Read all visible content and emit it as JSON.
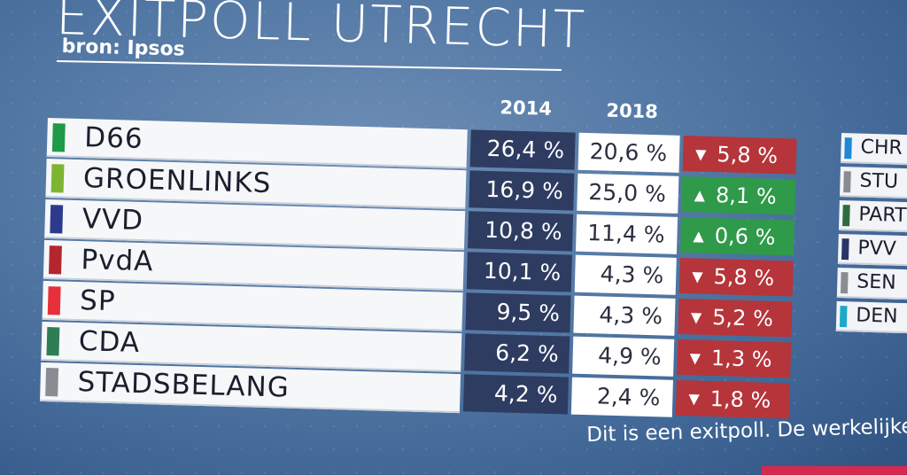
{
  "title": "EXITPOLL UTRECHT",
  "source": "bron: Ipsos",
  "disclaimer": "Dit is een exitpoll. De werkelijke ui",
  "colors": {
    "increase": "#2f9a4a",
    "decrease": "#b5353b",
    "col2014": "#2e3c62"
  },
  "chart_data": {
    "type": "table",
    "columns": [
      "2014",
      "2018"
    ],
    "rows": [
      {
        "party": "D66",
        "color": "#1f9a46",
        "v2014": "26,4 %",
        "v2018": "20,6 %",
        "direction": "down",
        "change": "5,8 %"
      },
      {
        "party": "GROENLINKS",
        "color": "#7db532",
        "v2014": "16,9 %",
        "v2018": "25,0 %",
        "direction": "up",
        "change": "8,1 %"
      },
      {
        "party": "VVD",
        "color": "#2d3a8c",
        "v2014": "10,8 %",
        "v2018": "11,4 %",
        "direction": "up",
        "change": "0,6 %"
      },
      {
        "party": "PvdA",
        "color": "#b3262e",
        "v2014": "10,1 %",
        "v2018": "4,3 %",
        "direction": "down",
        "change": "5,8 %"
      },
      {
        "party": "SP",
        "color": "#e8303a",
        "v2014": "9,5 %",
        "v2018": "4,3 %",
        "direction": "down",
        "change": "5,2 %"
      },
      {
        "party": "CDA",
        "color": "#2f7d55",
        "v2014": "6,2 %",
        "v2018": "4,9 %",
        "direction": "down",
        "change": "1,3 %"
      },
      {
        "party": "STADSBELANG",
        "color": "#8a8c92",
        "v2014": "4,2 %",
        "v2018": "2,4 %",
        "direction": "down",
        "change": "1,8 %"
      }
    ]
  },
  "side_list": [
    {
      "label": "CHR",
      "color": "#1e88d6"
    },
    {
      "label": "STU",
      "color": "#8a8c92"
    },
    {
      "label": "PART",
      "color": "#2f6b3f"
    },
    {
      "label": "PVV",
      "color": "#2a3566"
    },
    {
      "label": "SEN",
      "color": "#8a8c92"
    },
    {
      "label": "DEN",
      "color": "#1ea9c8"
    }
  ]
}
